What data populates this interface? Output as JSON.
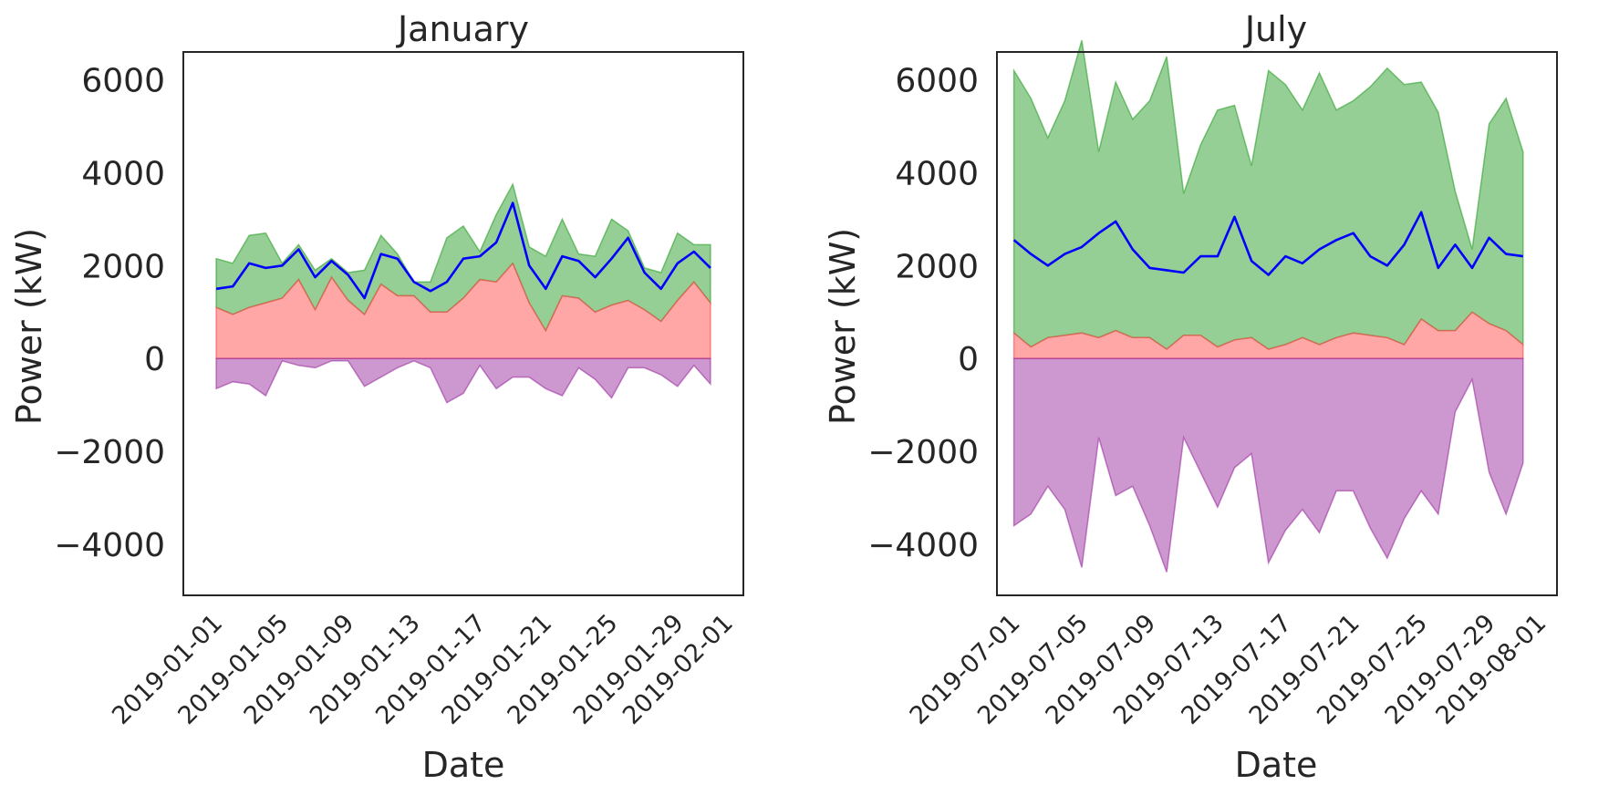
{
  "figure": {
    "colors": {
      "upper_band": "#2ca02c",
      "middle_band": "#ff4d4d",
      "lower_band": "#9b30a0",
      "line": "#0000ff",
      "axes": "#262626"
    }
  },
  "chart_data": [
    {
      "type": "area",
      "title": "January",
      "xlabel": "Date",
      "ylabel": "Power (kW)",
      "x_start": "2019-01-01",
      "x": [
        "2019-01-01",
        "2019-01-02",
        "2019-01-03",
        "2019-01-04",
        "2019-01-05",
        "2019-01-06",
        "2019-01-07",
        "2019-01-08",
        "2019-01-09",
        "2019-01-10",
        "2019-01-11",
        "2019-01-12",
        "2019-01-13",
        "2019-01-14",
        "2019-01-15",
        "2019-01-16",
        "2019-01-17",
        "2019-01-18",
        "2019-01-19",
        "2019-01-20",
        "2019-01-21",
        "2019-01-22",
        "2019-01-23",
        "2019-01-24",
        "2019-01-25",
        "2019-01-26",
        "2019-01-27",
        "2019-01-28",
        "2019-01-29",
        "2019-01-30",
        "2019-01-31"
      ],
      "xlim": [
        "2018-12-30",
        "2019-02-02"
      ],
      "ylim": [
        -5100,
        6600
      ],
      "yticks": [
        -4000,
        -2000,
        0,
        2000,
        4000,
        6000
      ],
      "ytick_labels": [
        "−4000",
        "−2000",
        "0",
        "2000",
        "4000",
        "6000"
      ],
      "xticks": [
        "2019-01-01",
        "2019-01-05",
        "2019-01-09",
        "2019-01-13",
        "2019-01-17",
        "2019-01-21",
        "2019-01-25",
        "2019-01-29",
        "2019-02-01"
      ],
      "xtick_labels": [
        "2019-01-01",
        "2019-01-05",
        "2019-01-09",
        "2019-01-13",
        "2019-01-17",
        "2019-01-21",
        "2019-01-25",
        "2019-01-29",
        "2019-02-01"
      ],
      "grid": false,
      "series": [
        {
          "role": "upper_band",
          "values": [
            2150,
            2050,
            2650,
            2700,
            2050,
            2450,
            1900,
            2150,
            1850,
            1900,
            2650,
            2250,
            1650,
            1650,
            2600,
            2850,
            2300,
            3100,
            3750,
            2400,
            2200,
            3000,
            2250,
            2200,
            3000,
            2750,
            1950,
            1850,
            2700,
            2450,
            2450
          ]
        },
        {
          "role": "middle_band",
          "values": [
            1100,
            950,
            1100,
            1200,
            1300,
            1700,
            1050,
            1750,
            1250,
            950,
            1600,
            1350,
            1350,
            1000,
            1000,
            1300,
            1700,
            1650,
            2050,
            1200,
            600,
            1350,
            1300,
            1000,
            1150,
            1250,
            1050,
            800,
            1250,
            1650,
            1200
          ]
        },
        {
          "role": "lower_band",
          "values": [
            -650,
            -500,
            -550,
            -800,
            -50,
            -150,
            -200,
            -50,
            -50,
            -600,
            -400,
            -200,
            -50,
            -200,
            -950,
            -750,
            -150,
            -650,
            -400,
            -400,
            -650,
            -800,
            -200,
            -450,
            -850,
            -200,
            -200,
            -350,
            -600,
            -150,
            -550
          ]
        },
        {
          "role": "line",
          "values": [
            1500,
            1550,
            2050,
            1950,
            2000,
            2350,
            1750,
            2100,
            1800,
            1300,
            2250,
            2150,
            1650,
            1450,
            1650,
            2150,
            2200,
            2500,
            3350,
            2000,
            1500,
            2200,
            2100,
            1750,
            2150,
            2600,
            1850,
            1500,
            2050,
            2300,
            1950
          ]
        }
      ]
    },
    {
      "type": "area",
      "title": "July",
      "xlabel": "Date",
      "ylabel": "Power (kW)",
      "x_start": "2019-07-01",
      "x": [
        "2019-07-01",
        "2019-07-02",
        "2019-07-03",
        "2019-07-04",
        "2019-07-05",
        "2019-07-06",
        "2019-07-07",
        "2019-07-08",
        "2019-07-09",
        "2019-07-10",
        "2019-07-11",
        "2019-07-12",
        "2019-07-13",
        "2019-07-14",
        "2019-07-15",
        "2019-07-16",
        "2019-07-17",
        "2019-07-18",
        "2019-07-19",
        "2019-07-20",
        "2019-07-21",
        "2019-07-22",
        "2019-07-23",
        "2019-07-24",
        "2019-07-25",
        "2019-07-26",
        "2019-07-27",
        "2019-07-28",
        "2019-07-29",
        "2019-07-30",
        "2019-07-31"
      ],
      "xlim": [
        "2019-06-30",
        "2019-08-02"
      ],
      "ylim": [
        -5100,
        6600
      ],
      "yticks": [
        -4000,
        -2000,
        0,
        2000,
        4000,
        6000
      ],
      "ytick_labels": [
        "−4000",
        "−2000",
        "0",
        "2000",
        "4000",
        "6000"
      ],
      "xticks": [
        "2019-07-01",
        "2019-07-05",
        "2019-07-09",
        "2019-07-13",
        "2019-07-17",
        "2019-07-21",
        "2019-07-25",
        "2019-07-29",
        "2019-08-01"
      ],
      "xtick_labels": [
        "2019-07-01",
        "2019-07-05",
        "2019-07-09",
        "2019-07-13",
        "2019-07-17",
        "2019-07-21",
        "2019-07-25",
        "2019-07-29",
        "2019-08-01"
      ],
      "grid": false,
      "series": [
        {
          "role": "upper_band",
          "values": [
            6200,
            5600,
            4750,
            5550,
            6850,
            4450,
            5950,
            5150,
            5550,
            6500,
            3550,
            4600,
            5350,
            5450,
            4150,
            6200,
            5900,
            5350,
            6150,
            5350,
            5550,
            5850,
            6250,
            5900,
            5950,
            5300,
            3600,
            2350,
            5050,
            5600,
            4450
          ]
        },
        {
          "role": "middle_band",
          "values": [
            550,
            250,
            450,
            500,
            550,
            450,
            600,
            450,
            450,
            200,
            500,
            500,
            250,
            400,
            450,
            200,
            300,
            450,
            300,
            450,
            550,
            500,
            450,
            300,
            850,
            600,
            600,
            1000,
            750,
            600,
            300
          ]
        },
        {
          "role": "lower_band",
          "values": [
            -3600,
            -3350,
            -2750,
            -3250,
            -4500,
            -1700,
            -2950,
            -2750,
            -3600,
            -4600,
            -1700,
            -2450,
            -3200,
            -2350,
            -2050,
            -4400,
            -3700,
            -3250,
            -3750,
            -2850,
            -2850,
            -3650,
            -4300,
            -3450,
            -2850,
            -3350,
            -1150,
            -450,
            -2450,
            -3350,
            -2250
          ]
        },
        {
          "role": "line",
          "values": [
            2550,
            2250,
            2000,
            2250,
            2400,
            2700,
            2950,
            2350,
            1950,
            1900,
            1850,
            2200,
            2200,
            3050,
            2100,
            1800,
            2200,
            2050,
            2350,
            2550,
            2700,
            2200,
            2000,
            2450,
            3150,
            1950,
            2450,
            1950,
            2600,
            2250,
            2200
          ]
        }
      ]
    }
  ]
}
